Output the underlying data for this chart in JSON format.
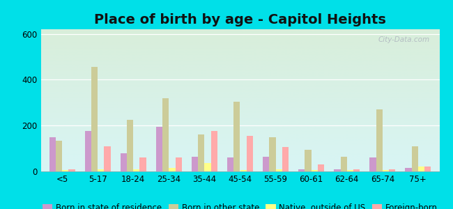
{
  "title": "Place of birth by age - Capitol Heights",
  "categories": [
    "<5",
    "5-17",
    "18-24",
    "25-34",
    "35-44",
    "45-54",
    "55-59",
    "60-61",
    "62-64",
    "65-74",
    "75+"
  ],
  "series": {
    "Born in state of residence": [
      150,
      175,
      80,
      195,
      65,
      60,
      65,
      10,
      10,
      60,
      15
    ],
    "Born in other state": [
      135,
      455,
      225,
      320,
      160,
      305,
      150,
      95,
      65,
      270,
      110
    ],
    "Native, outside of US": [
      5,
      10,
      10,
      15,
      35,
      5,
      10,
      5,
      5,
      5,
      20
    ],
    "Foreign-born": [
      10,
      110,
      60,
      60,
      175,
      155,
      105,
      30,
      10,
      10,
      20
    ]
  },
  "colors": {
    "Born in state of residence": "#cc99cc",
    "Born in other state": "#cccc99",
    "Native, outside of US": "#ffff88",
    "Foreign-born": "#ffaaaa"
  },
  "ylim": [
    0,
    620
  ],
  "yticks": [
    0,
    200,
    400,
    600
  ],
  "outer_bg": "#00e0e8",
  "title_fontsize": 14,
  "bar_width": 0.18,
  "legend_fontsize": 8.5
}
